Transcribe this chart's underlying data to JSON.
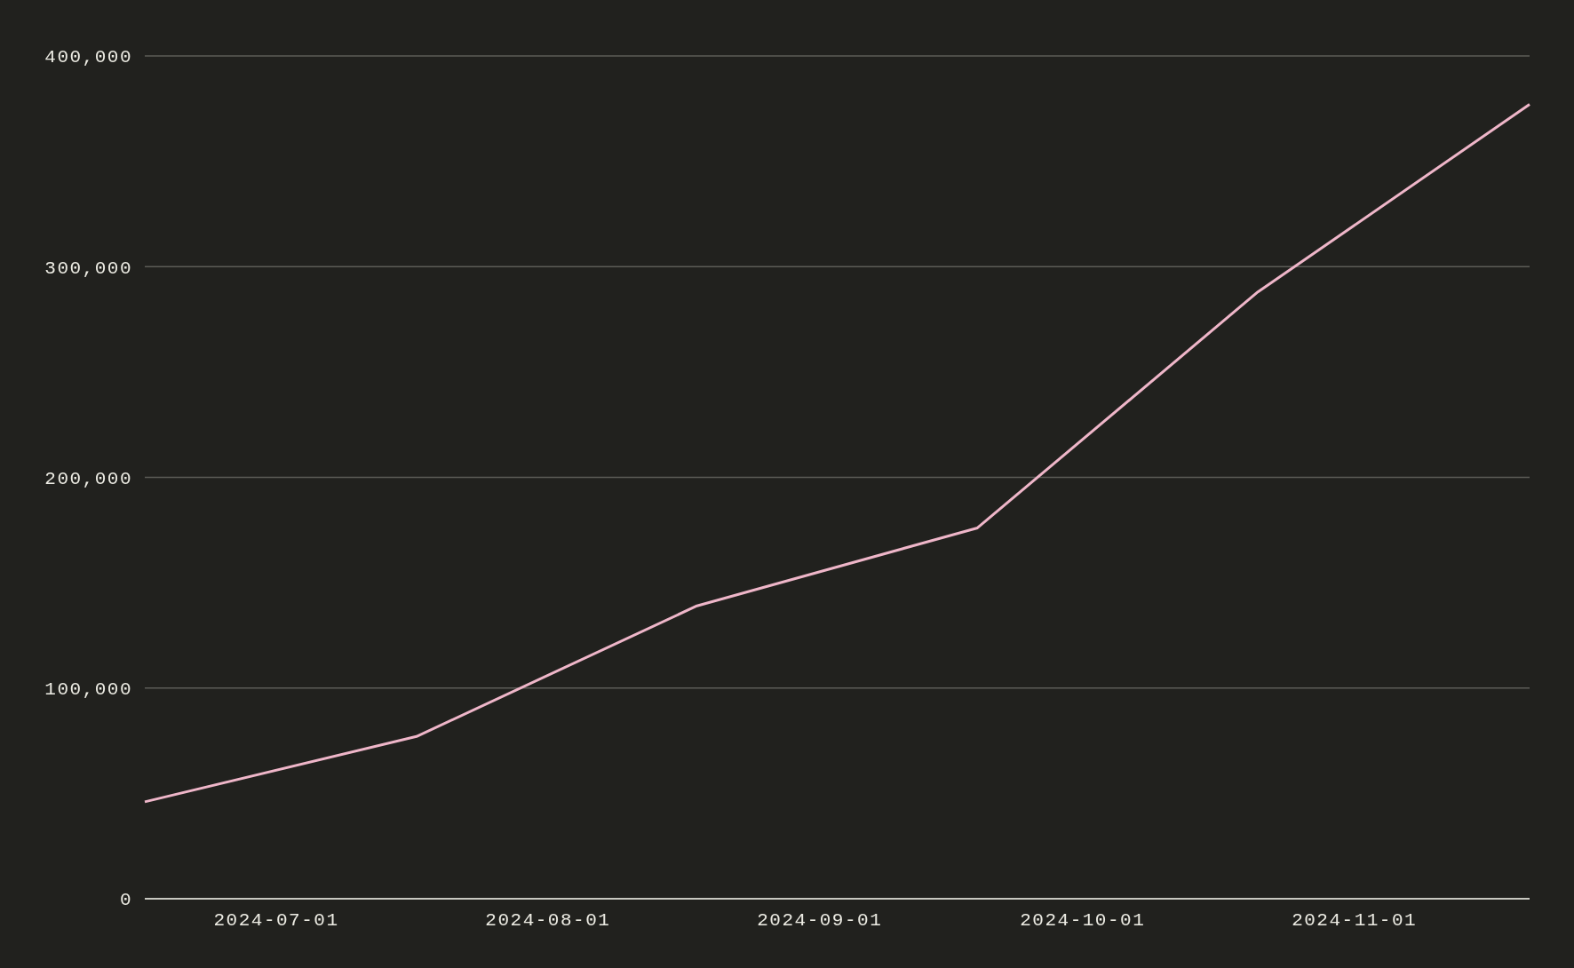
{
  "chart_data": {
    "type": "line",
    "x": [
      "2024-06-16",
      "2024-07-17",
      "2024-08-18",
      "2024-09-19",
      "2024-10-21",
      "2024-11-21"
    ],
    "series": [
      {
        "color": "#efb6c9",
        "values": [
          46000,
          77000,
          139000,
          176000,
          288000,
          377000
        ]
      }
    ],
    "xlim": [
      "2024-06-16",
      "2024-11-21"
    ],
    "xticks": [
      "2024-07-01",
      "2024-08-01",
      "2024-09-01",
      "2024-10-01",
      "2024-11-01"
    ],
    "ylim": [
      0,
      400000
    ],
    "yticks": [
      0,
      {
        "value": 100000,
        "label": "100,000"
      },
      {
        "value": 200000,
        "label": "200,000"
      },
      {
        "value": 300000,
        "label": "300,000"
      },
      {
        "value": 400000,
        "label": "400,000"
      }
    ],
    "grid": "y",
    "line_style": "solid"
  }
}
